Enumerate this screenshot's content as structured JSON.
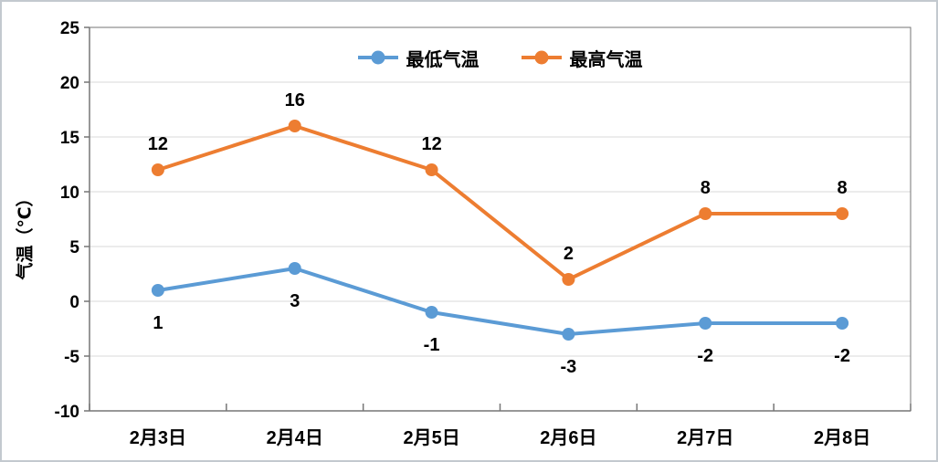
{
  "chart_data": {
    "type": "line",
    "categories": [
      "2月3日",
      "2月4日",
      "2月5日",
      "2月6日",
      "2月7日",
      "2月8日"
    ],
    "series": [
      {
        "id": "min-temp",
        "name": "最低气温",
        "color": "#5B9BD5",
        "values": [
          1,
          3,
          -1,
          -3,
          -2,
          -2
        ],
        "label_position": "below"
      },
      {
        "id": "max-temp",
        "name": "最高气温",
        "color": "#ED7D31",
        "values": [
          12,
          16,
          12,
          2,
          8,
          8
        ],
        "label_position": "above"
      }
    ],
    "xlabel": "",
    "ylabel": "气温（℃）",
    "ylim": [
      -10,
      25
    ],
    "yticks": [
      25,
      20,
      15,
      10,
      5,
      0,
      -5,
      -10
    ],
    "grid": "horizontal",
    "legend_position": "top-center"
  },
  "colors": {
    "gridline": "#D9D9D9",
    "axis": "#767676",
    "data_label": "#000000"
  }
}
